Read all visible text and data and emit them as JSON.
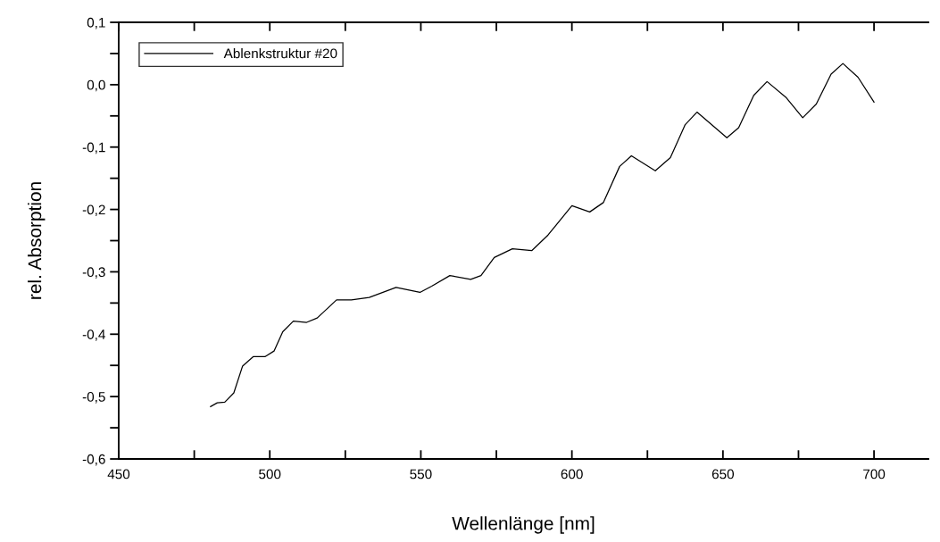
{
  "chart_data": {
    "type": "line",
    "xlabel": "Wellenlänge [nm]",
    "ylabel": "rel. Absorption",
    "legend": "top left",
    "grid": false,
    "marker": "none",
    "line_style": "solid",
    "xlim": [
      450,
      718
    ],
    "ylim": [
      -0.6,
      0.1
    ],
    "xticks": [
      450,
      {
        "value": 475,
        "label": null
      },
      500,
      {
        "value": 525,
        "label": null
      },
      550,
      {
        "value": 575,
        "label": null
      },
      600,
      {
        "value": 625,
        "label": null
      },
      650,
      {
        "value": 675,
        "label": null
      },
      700
    ],
    "yticks": [
      {
        "value": -0.6,
        "label": "-0,6"
      },
      {
        "value": -0.55,
        "label": null
      },
      {
        "value": -0.5,
        "label": "-0,5"
      },
      {
        "value": -0.45,
        "label": null
      },
      {
        "value": -0.4,
        "label": "-0,4"
      },
      {
        "value": -0.35,
        "label": null
      },
      {
        "value": -0.3,
        "label": "-0,3"
      },
      {
        "value": -0.25,
        "label": null
      },
      {
        "value": -0.2,
        "label": "-0,2"
      },
      {
        "value": -0.15,
        "label": null
      },
      {
        "value": -0.1,
        "label": "-0,1"
      },
      {
        "value": -0.05,
        "label": null
      },
      {
        "value": 0.0,
        "label": "0,0"
      },
      {
        "value": 0.05,
        "label": null
      },
      {
        "value": 0.1,
        "label": "0,1"
      }
    ],
    "series": [
      {
        "name": "Ablenkstruktur #20",
        "color": "#000000",
        "x": [
          480.4,
          482.6,
          485.1,
          488.1,
          491.0,
          494.5,
          498.4,
          501.4,
          504.3,
          507.8,
          512.2,
          515.7,
          522.1,
          527.0,
          532.9,
          541.8,
          549.7,
          553.6,
          559.6,
          566.5,
          569.9,
          574.3,
          580.3,
          586.7,
          592.1,
          600.0,
          605.9,
          610.4,
          615.8,
          619.7,
          627.6,
          632.6,
          637.5,
          641.4,
          651.3,
          655.2,
          660.2,
          664.6,
          671.0,
          676.4,
          680.9,
          685.8,
          689.7,
          694.7,
          700.0
        ],
        "values": [
          -0.516,
          -0.51,
          -0.509,
          -0.494,
          -0.451,
          -0.436,
          -0.436,
          -0.427,
          -0.396,
          -0.379,
          -0.381,
          -0.374,
          -0.345,
          -0.345,
          -0.341,
          -0.325,
          -0.333,
          -0.323,
          -0.306,
          -0.312,
          -0.306,
          -0.277,
          -0.263,
          -0.266,
          -0.241,
          -0.194,
          -0.204,
          -0.189,
          -0.131,
          -0.114,
          -0.138,
          -0.117,
          -0.064,
          -0.044,
          -0.085,
          -0.069,
          -0.017,
          0.005,
          -0.021,
          -0.053,
          -0.031,
          0.017,
          0.034,
          0.012,
          -0.028
        ]
      }
    ]
  }
}
